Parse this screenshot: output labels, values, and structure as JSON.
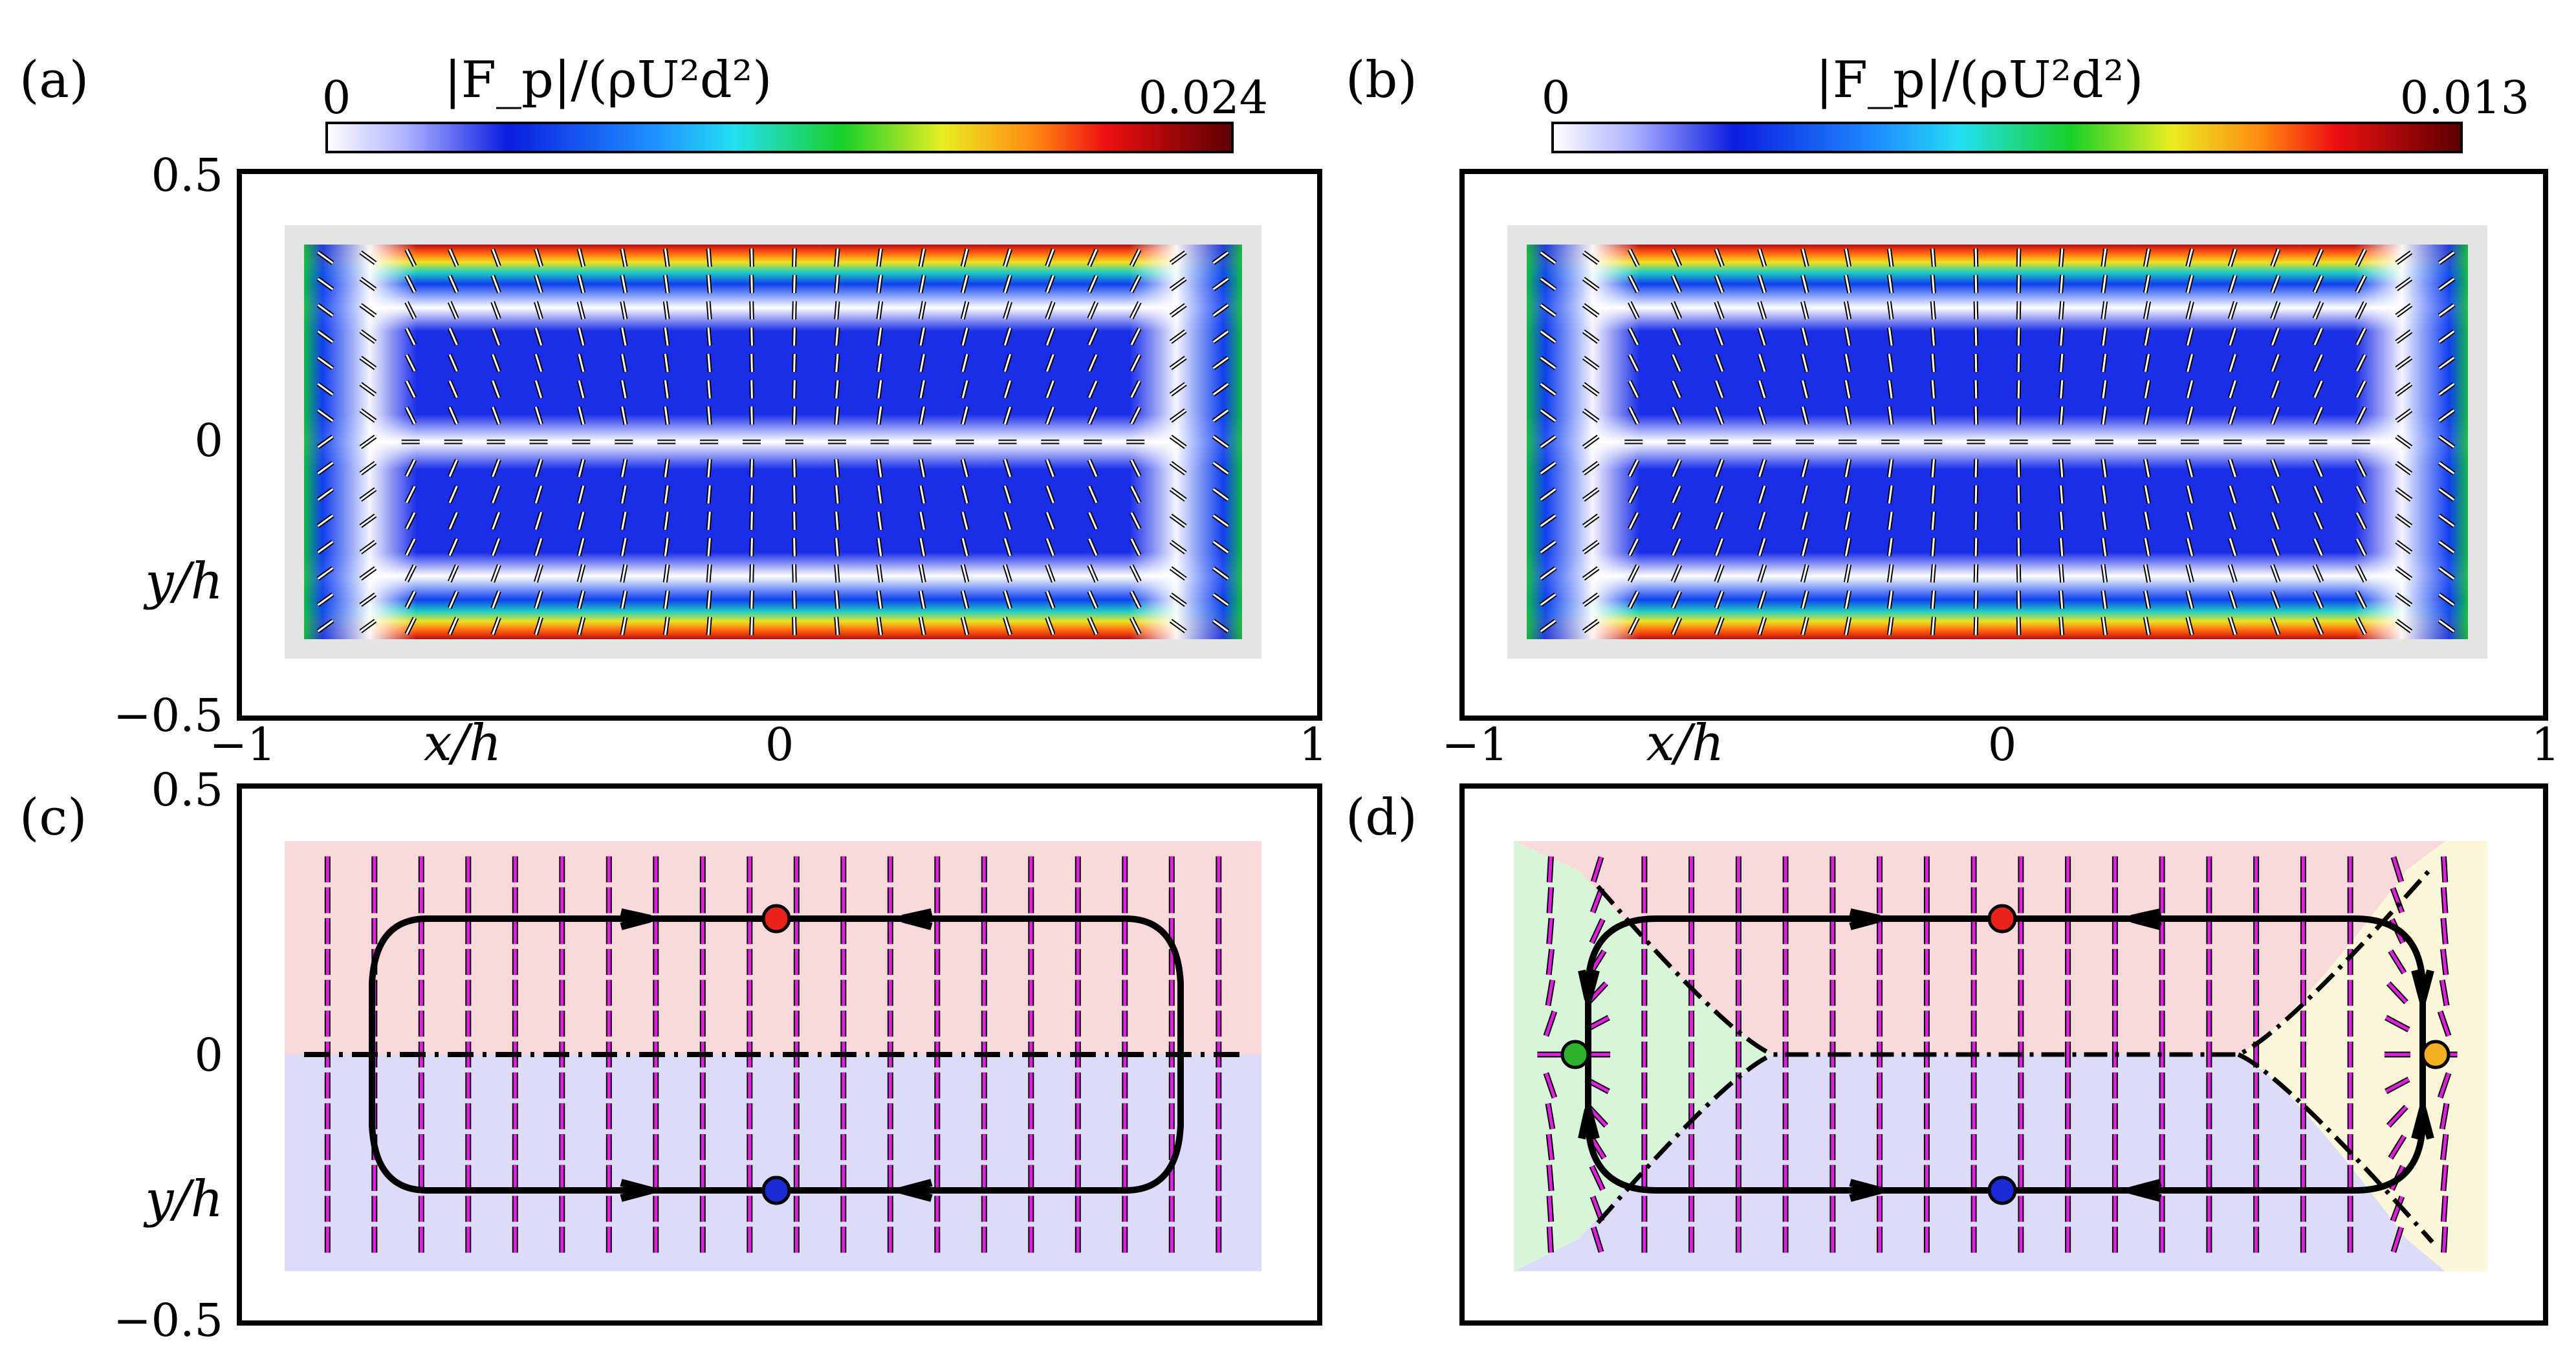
{
  "chart_data": [
    {
      "panel": "a",
      "type": "heatmap",
      "panel_label": "(a)",
      "colorbar": {
        "label": "|F_p|/(ρU²d²)",
        "min_label": "0",
        "max_label": "0.024",
        "min": 0,
        "max": 0.024
      },
      "field": "in-plane force magnitude with unit direction arrows",
      "xlabel": "x/h",
      "ylabel": "y/h",
      "x_ticks": [
        "−1",
        "0",
        "1"
      ],
      "y_ticks": [
        "0.5",
        "0",
        "−0.5"
      ],
      "xlim": [
        -1,
        1
      ],
      "ylim": [
        -0.5,
        0.5
      ]
    },
    {
      "panel": "b",
      "type": "heatmap",
      "panel_label": "(b)",
      "colorbar": {
        "label": "|F_p|/(ρU²d²)",
        "min_label": "0",
        "max_label": "0.013",
        "min": 0,
        "max": 0.013
      },
      "field": "in-plane force magnitude with unit direction arrows",
      "xlabel": "x/h",
      "x_ticks": [
        "−1",
        "0",
        "1"
      ],
      "xlim": [
        -1,
        1
      ],
      "ylim": [
        -0.5,
        0.5
      ]
    },
    {
      "panel": "c",
      "type": "scatter",
      "panel_label": "(c)",
      "description": "force streamlines; two stable equilibria",
      "ylabel": "y/h",
      "y_ticks": [
        "0.5",
        "0",
        "−0.5"
      ],
      "xlim": [
        -1,
        1
      ],
      "ylim": [
        -0.5,
        0.5
      ],
      "equilibria": [
        {
          "kind": "stable",
          "color": "#e8231c",
          "x": 0.0,
          "y": 0.265
        },
        {
          "kind": "stable",
          "color": "#1a2bd6",
          "x": 0.0,
          "y": -0.265
        }
      ],
      "basins": [
        {
          "region": "upper",
          "color": "#f9d9d9"
        },
        {
          "region": "lower",
          "color": "#dcdcf8"
        }
      ]
    },
    {
      "panel": "d",
      "type": "scatter",
      "panel_label": "(d)",
      "description": "force streamlines; four stable equilibria",
      "xlim": [
        -1,
        1
      ],
      "ylim": [
        -0.5,
        0.5
      ],
      "equilibria": [
        {
          "kind": "stable",
          "color": "#e8231c",
          "x": 0.0,
          "y": 0.265
        },
        {
          "kind": "stable",
          "color": "#1a2bd6",
          "x": 0.0,
          "y": -0.265
        },
        {
          "kind": "stable",
          "color": "#2db22d",
          "x": -0.875,
          "y": 0.0
        },
        {
          "kind": "stable",
          "color": "#f0b020",
          "x": 0.875,
          "y": 0.0
        }
      ],
      "basins": [
        {
          "region": "upper",
          "color": "#f9d9d9"
        },
        {
          "region": "lower",
          "color": "#dcdcf8"
        },
        {
          "region": "left",
          "color": "#d9f5d9"
        },
        {
          "region": "right",
          "color": "#fbf8d9"
        }
      ]
    }
  ]
}
